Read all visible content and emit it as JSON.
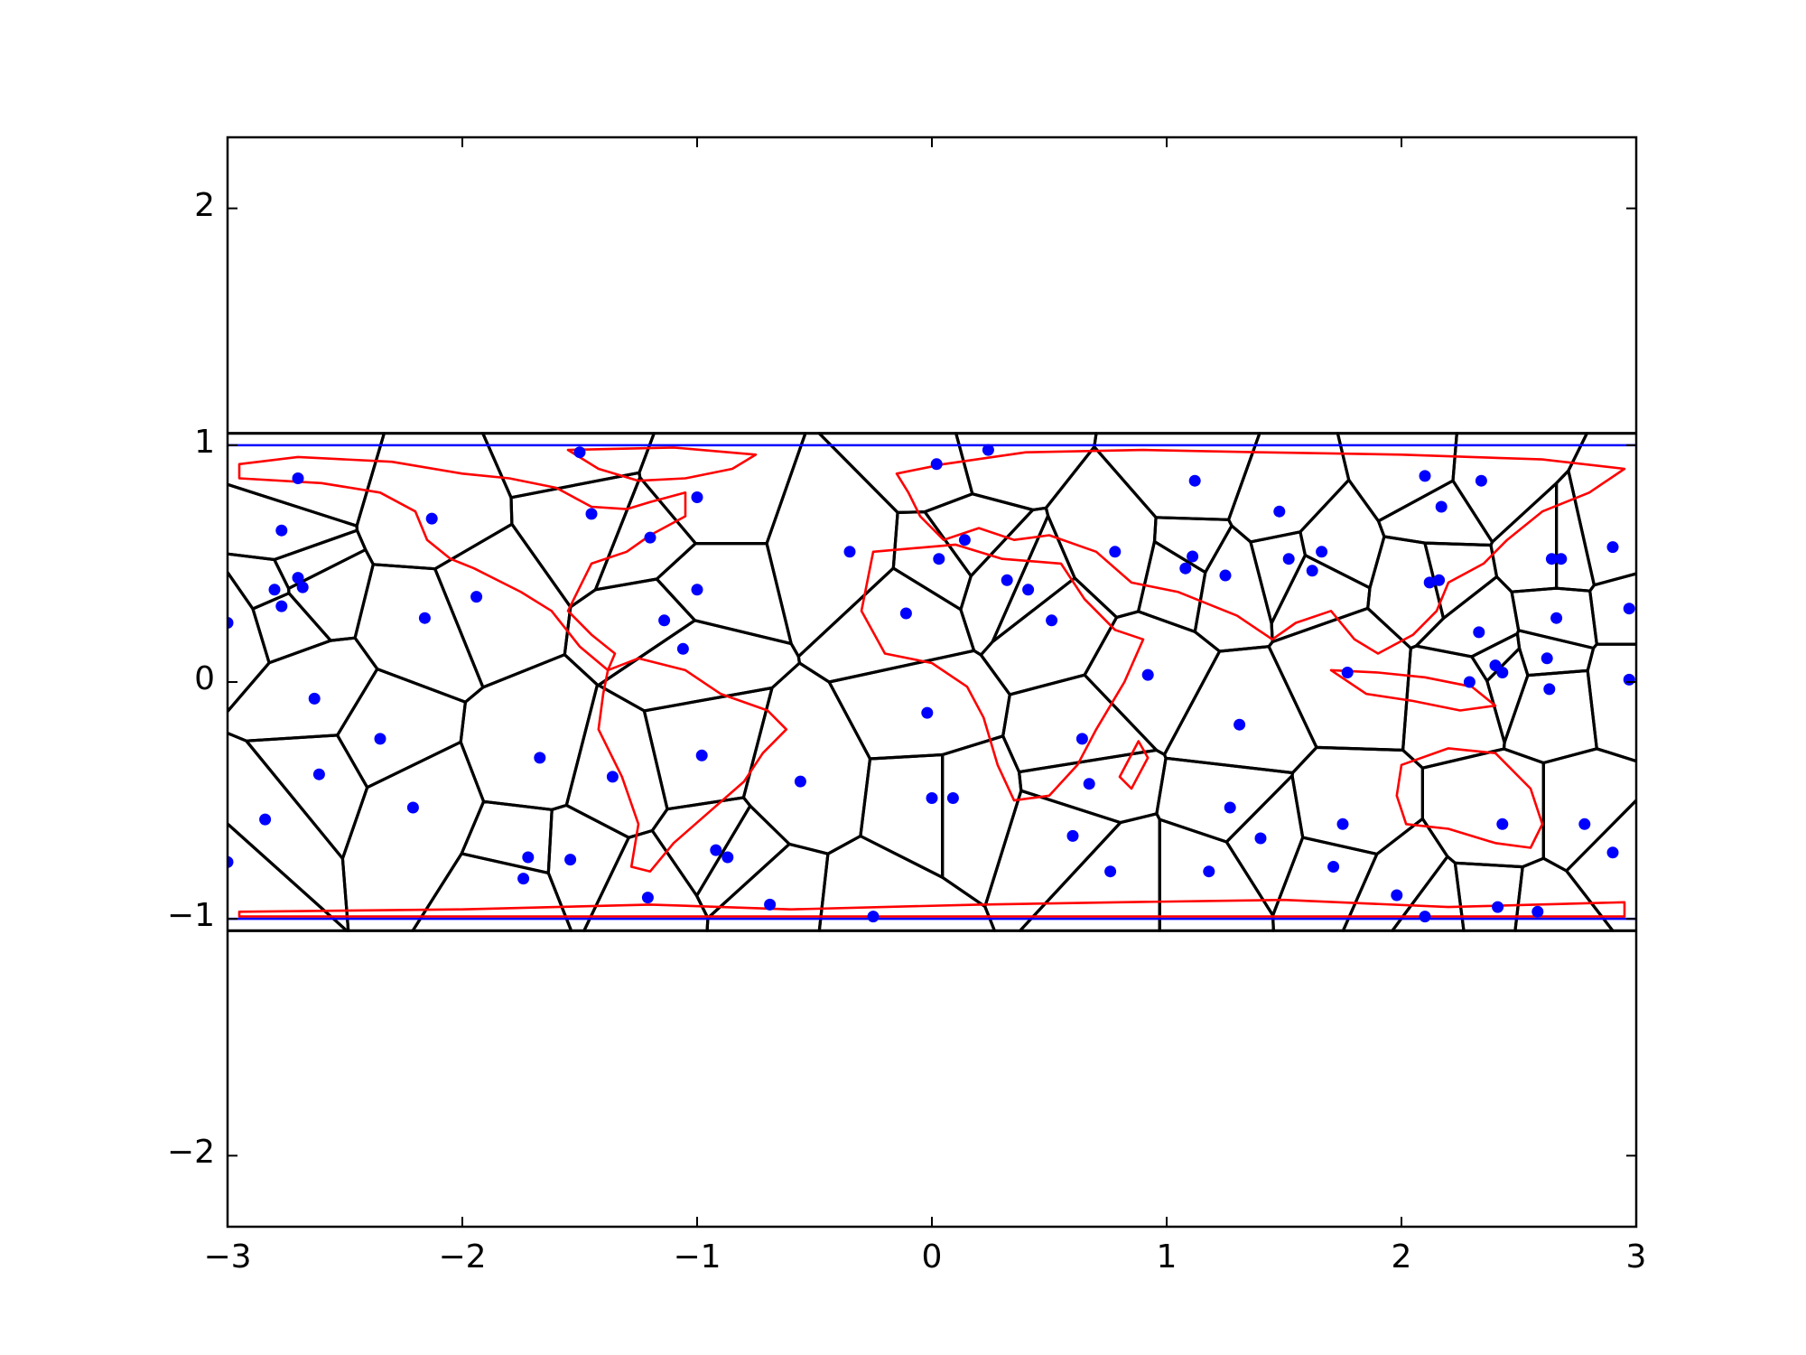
{
  "chart_data": {
    "type": "scatter",
    "title": "",
    "xlabel": "",
    "ylabel": "",
    "xlim": [
      -3,
      3
    ],
    "ylim": [
      -2.3,
      2.3
    ],
    "xticks": [
      -3,
      -2,
      -1,
      0,
      1,
      2,
      3
    ],
    "yticks": [
      -2,
      -1,
      0,
      1,
      2
    ],
    "xtick_labels": [
      "−3",
      "−2",
      "−1",
      "0",
      "1",
      "2",
      "3"
    ],
    "ytick_labels": [
      "−2",
      "−1",
      "0",
      "1",
      "2"
    ],
    "grid": false,
    "legend": "none",
    "colors": {
      "points": "#0000ff",
      "bounds": "#0000ff",
      "cells": "#000000",
      "coastlines": "#ff0000"
    },
    "horizontal_lines": [
      1,
      -1
    ],
    "points": [
      [
        -2.7,
        0.86
      ],
      [
        -2.77,
        0.64
      ],
      [
        -2.8,
        0.39
      ],
      [
        -2.7,
        0.44
      ],
      [
        -2.68,
        0.4
      ],
      [
        -2.77,
        0.32
      ],
      [
        -3.0,
        0.25
      ],
      [
        -2.63,
        -0.07
      ],
      [
        -2.61,
        -0.39
      ],
      [
        -2.84,
        -0.58
      ],
      [
        -3.0,
        -0.76
      ],
      [
        -2.35,
        -0.24
      ],
      [
        -2.21,
        -0.53
      ],
      [
        -2.16,
        0.27
      ],
      [
        -2.13,
        0.69
      ],
      [
        -1.94,
        0.36
      ],
      [
        -1.67,
        -0.32
      ],
      [
        -1.72,
        -0.74
      ],
      [
        -1.74,
        -0.83
      ],
      [
        -1.54,
        -0.75
      ],
      [
        -1.36,
        -0.4
      ],
      [
        -1.45,
        0.71
      ],
      [
        -1.5,
        0.97
      ],
      [
        -1.2,
        0.61
      ],
      [
        -1.14,
        0.26
      ],
      [
        -1.06,
        0.14
      ],
      [
        -1.0,
        0.78
      ],
      [
        -1.0,
        0.39
      ],
      [
        -0.98,
        -0.31
      ],
      [
        -0.92,
        -0.71
      ],
      [
        -0.87,
        -0.74
      ],
      [
        -1.21,
        -0.91
      ],
      [
        -0.69,
        -0.94
      ],
      [
        -0.56,
        -0.42
      ],
      [
        -0.35,
        0.55
      ],
      [
        -0.25,
        -0.99
      ],
      [
        -0.11,
        0.29
      ],
      [
        -0.02,
        -0.13
      ],
      [
        0.02,
        0.92
      ],
      [
        0.03,
        0.52
      ],
      [
        0.0,
        -0.49
      ],
      [
        0.09,
        -0.49
      ],
      [
        0.14,
        0.6
      ],
      [
        0.24,
        0.98
      ],
      [
        0.32,
        0.43
      ],
      [
        0.41,
        0.39
      ],
      [
        0.51,
        0.26
      ],
      [
        0.6,
        -0.65
      ],
      [
        0.64,
        -0.24
      ],
      [
        0.67,
        -0.43
      ],
      [
        0.76,
        -0.8
      ],
      [
        0.78,
        0.55
      ],
      [
        0.92,
        0.03
      ],
      [
        1.08,
        0.48
      ],
      [
        1.11,
        0.53
      ],
      [
        1.12,
        0.85
      ],
      [
        1.25,
        0.45
      ],
      [
        1.27,
        -0.53
      ],
      [
        1.31,
        -0.18
      ],
      [
        1.18,
        -0.8
      ],
      [
        1.4,
        -0.66
      ],
      [
        1.48,
        0.72
      ],
      [
        1.52,
        0.52
      ],
      [
        1.62,
        0.47
      ],
      [
        1.66,
        0.55
      ],
      [
        1.71,
        -0.78
      ],
      [
        1.75,
        -0.6
      ],
      [
        1.77,
        0.04
      ],
      [
        1.98,
        -0.9
      ],
      [
        2.1,
        0.87
      ],
      [
        2.12,
        0.42
      ],
      [
        2.16,
        0.43
      ],
      [
        2.17,
        0.74
      ],
      [
        2.1,
        -0.99
      ],
      [
        2.29,
        0.0
      ],
      [
        2.34,
        0.85
      ],
      [
        2.33,
        0.21
      ],
      [
        2.4,
        0.07
      ],
      [
        2.43,
        0.04
      ],
      [
        2.41,
        -0.95
      ],
      [
        2.43,
        -0.6
      ],
      [
        2.58,
        -0.97
      ],
      [
        2.64,
        0.52
      ],
      [
        2.66,
        0.27
      ],
      [
        2.68,
        0.52
      ],
      [
        2.62,
        0.1
      ],
      [
        2.63,
        -0.03
      ],
      [
        2.78,
        -0.6
      ],
      [
        2.9,
        0.57
      ],
      [
        2.97,
        0.31
      ],
      [
        2.97,
        0.01
      ],
      [
        2.9,
        -0.72
      ]
    ]
  }
}
